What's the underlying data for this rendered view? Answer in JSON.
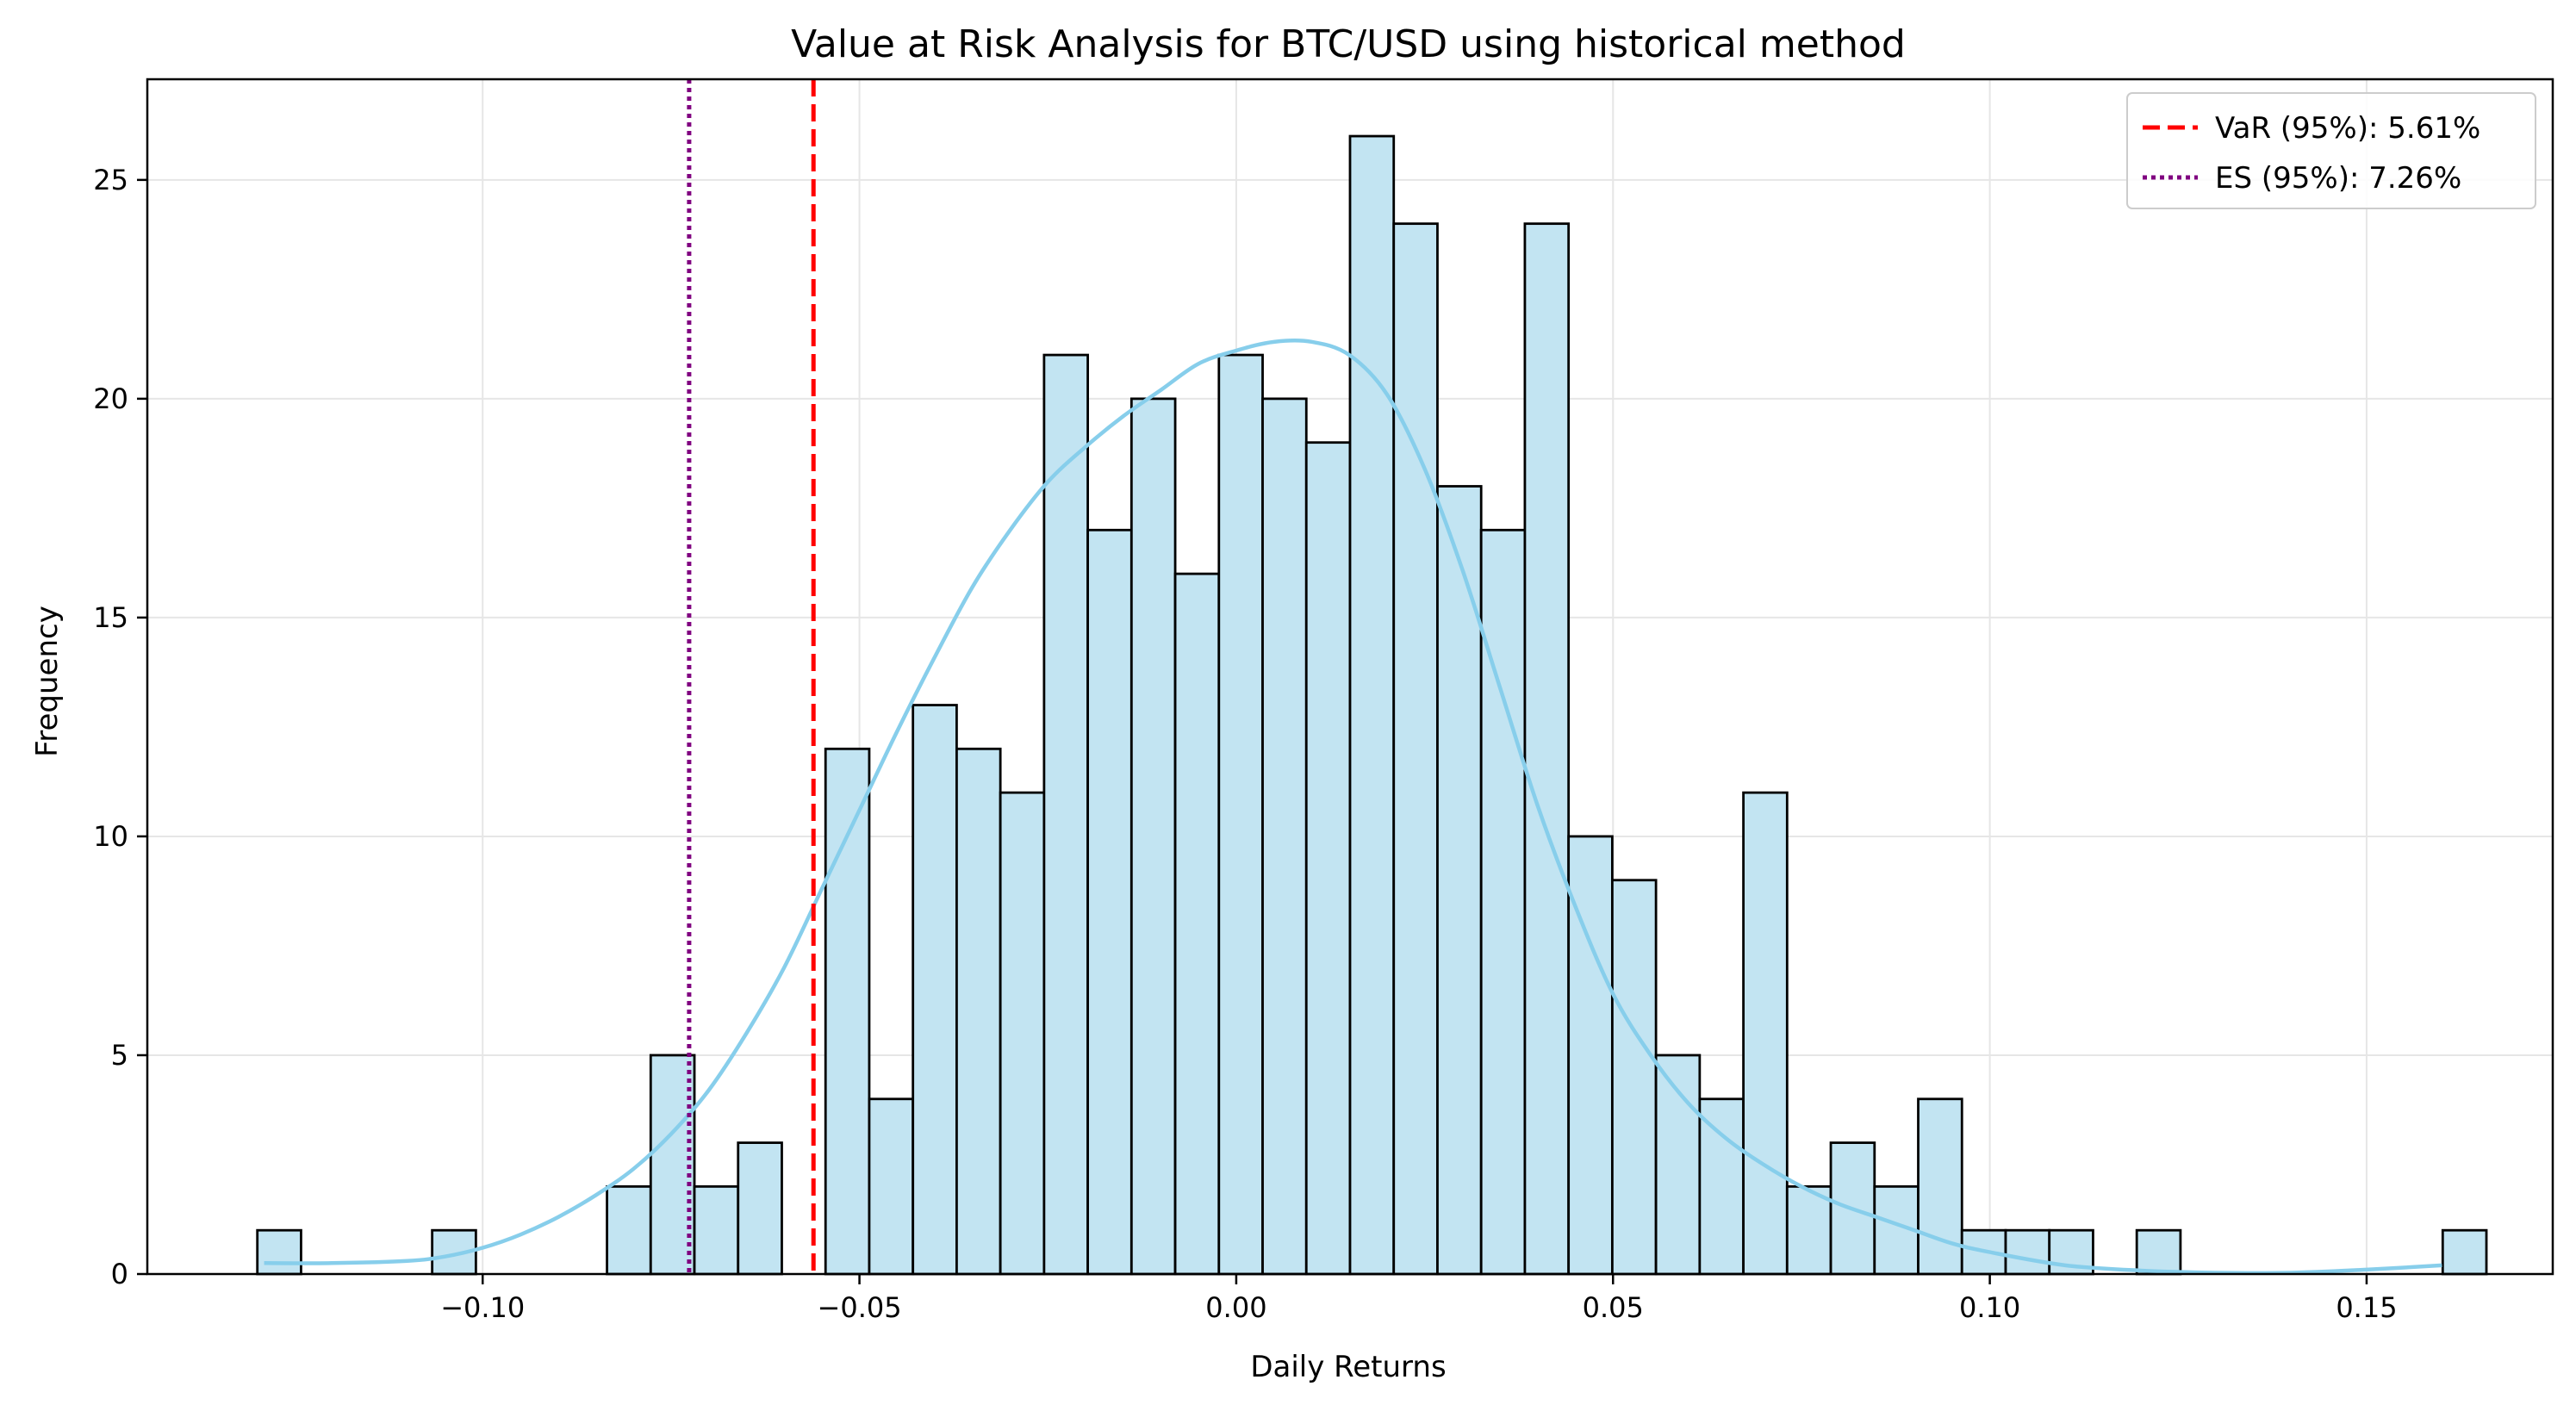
{
  "chart_data": {
    "type": "bar",
    "title": "Value at Risk Analysis for BTC/USD using historical method",
    "xlabel": "Daily Returns",
    "ylabel": "Frequency",
    "xlim": [
      -0.1445,
      0.1747
    ],
    "ylim": [
      0,
      27.3
    ],
    "grid": true,
    "legend_position": "top-right",
    "x_ticks": [
      -0.1,
      -0.05,
      0.0,
      0.05,
      0.1,
      0.15
    ],
    "x_tick_labels": [
      "−0.10",
      "−0.05",
      "0.00",
      "0.05",
      "0.10",
      "0.15"
    ],
    "y_ticks": [
      0,
      5,
      10,
      15,
      20,
      25
    ],
    "y_tick_labels": [
      "0",
      "5",
      "10",
      "15",
      "20",
      "25"
    ],
    "bin_start": -0.1299,
    "bin_width": 0.0058,
    "counts": [
      1,
      0,
      0,
      0,
      1,
      0,
      0,
      0,
      2,
      5,
      2,
      3,
      0,
      12,
      4,
      13,
      12,
      11,
      21,
      17,
      20,
      16,
      21,
      20,
      19,
      26,
      24,
      18,
      17,
      24,
      10,
      9,
      5,
      4,
      11,
      2,
      3,
      2,
      4,
      1,
      1,
      1,
      0,
      1,
      0,
      0,
      0,
      0,
      0,
      0,
      1
    ],
    "kde": {
      "x": [
        -0.129,
        -0.12,
        -0.11,
        -0.105,
        -0.1,
        -0.095,
        -0.09,
        -0.085,
        -0.08,
        -0.075,
        -0.07,
        -0.065,
        -0.06,
        -0.055,
        -0.05,
        -0.045,
        -0.04,
        -0.035,
        -0.03,
        -0.025,
        -0.02,
        -0.015,
        -0.01,
        -0.005,
        0.0,
        0.005,
        0.01,
        0.015,
        0.02,
        0.025,
        0.03,
        0.035,
        0.04,
        0.045,
        0.05,
        0.055,
        0.06,
        0.065,
        0.07,
        0.075,
        0.08,
        0.085,
        0.09,
        0.095,
        0.1,
        0.11,
        0.12,
        0.13,
        0.14,
        0.15,
        0.16
      ],
      "y": [
        0.25,
        0.25,
        0.3,
        0.4,
        0.6,
        0.9,
        1.3,
        1.8,
        2.4,
        3.2,
        4.2,
        5.5,
        7.0,
        8.8,
        10.6,
        12.4,
        14.1,
        15.7,
        17.0,
        18.1,
        18.9,
        19.6,
        20.2,
        20.8,
        21.1,
        21.3,
        21.3,
        21.0,
        20.1,
        18.4,
        16.1,
        13.4,
        10.7,
        8.4,
        6.4,
        5.0,
        3.9,
        3.1,
        2.5,
        2.0,
        1.6,
        1.3,
        1.0,
        0.7,
        0.5,
        0.2,
        0.08,
        0.03,
        0.03,
        0.1,
        0.2
      ]
    },
    "reference_lines": [
      {
        "label": "VaR (95%): 5.61%",
        "x": -0.0561,
        "color": "#ff0000",
        "style": "dashed"
      },
      {
        "label": "ES (95%): 7.26%",
        "x": -0.0726,
        "color": "#800080",
        "style": "dotted"
      }
    ],
    "colors": {
      "bar_fill": "#c2e4f2",
      "bar_edge": "#000000",
      "kde_line": "#87ceeb",
      "grid": "#e6e6e6"
    }
  }
}
